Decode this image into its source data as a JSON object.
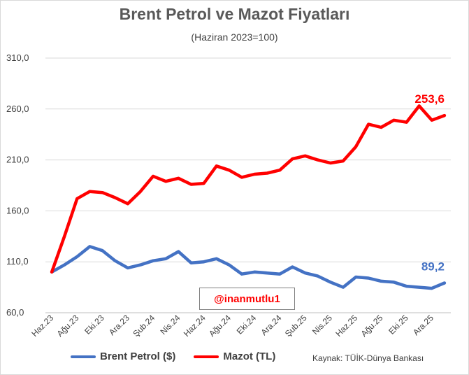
{
  "chart_data": {
    "type": "line",
    "title": "Brent Petrol ve Mazot Fiyatları",
    "subtitle": "(Haziran 2023=100)",
    "ylim": [
      60,
      310
    ],
    "yticks": [
      "310,0",
      "260,0",
      "210,0",
      "160,0",
      "110,0",
      "60,0"
    ],
    "ytick_values": [
      310,
      260,
      210,
      160,
      110,
      60
    ],
    "grid": true,
    "legend_position": "bottom-left",
    "tick_labels": [
      "Haz.23",
      "Ağu.23",
      "Eki.23",
      "Ara.23",
      "Şub.24",
      "Nis.24",
      "Haz.24",
      "Ağu.24",
      "Eki.24",
      "Ara.24",
      "Şub.25",
      "Nis.25",
      "Haz.25",
      "Ağu.25",
      "Eki.25",
      "Ara.25"
    ],
    "x": [
      "Haz.23",
      "Tem.23",
      "Ağu.23",
      "Eyl.23",
      "Eki.23",
      "Kas.23",
      "Ara.23",
      "Oca.24",
      "Şub.24",
      "Mar.24",
      "Nis.24",
      "May.24",
      "Haz.24",
      "Tem.24",
      "Ağu.24",
      "Eyl.24",
      "Eki.24",
      "Kas.24",
      "Ara.24",
      "Oca.25",
      "Şub.25",
      "Mar.25",
      "Nis.25",
      "May.25",
      "Haz.25",
      "Tem.25",
      "Ağu.25",
      "Eyl.25",
      "Eki.25",
      "Kas.25",
      "Ara.25",
      "Oca.26"
    ],
    "series": [
      {
        "name": "Brent Petrol ($)",
        "color": "#4472c4",
        "values": [
          100,
          107,
          115,
          125,
          121,
          111,
          104,
          107,
          111,
          113,
          120,
          109,
          110,
          113,
          107,
          98,
          100,
          99,
          98,
          105,
          99,
          96,
          90,
          85,
          95,
          94,
          91,
          90,
          86,
          85,
          84,
          89.2
        ],
        "end_label": "89,2"
      },
      {
        "name": "Mazot (TL)",
        "color": "#ff0000",
        "values": [
          100,
          135,
          172,
          179,
          178,
          173,
          167,
          179,
          194,
          189,
          192,
          186,
          187,
          204,
          200,
          193,
          196,
          197,
          200,
          211,
          214,
          210,
          207,
          209,
          223,
          245,
          242,
          249,
          247,
          263,
          249,
          253.6
        ],
        "end_label": "253,6"
      }
    ],
    "watermark": "@inanmutlu1",
    "source": "Kaynak: TÜİK-Dünya Bankası"
  }
}
